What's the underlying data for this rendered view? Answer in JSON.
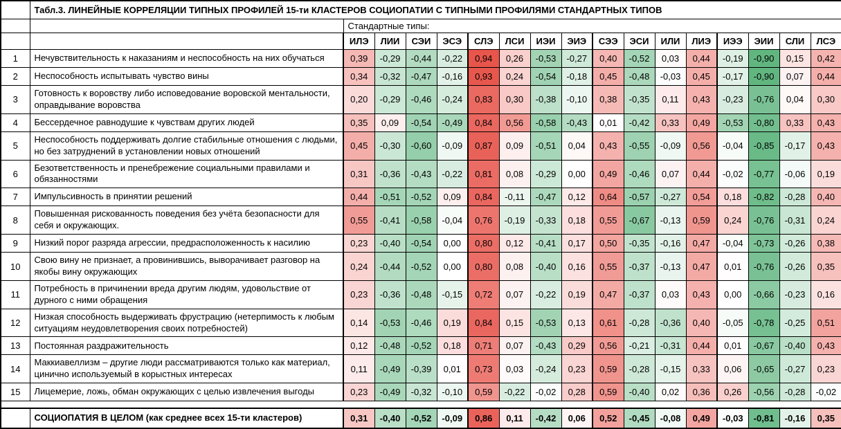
{
  "table": {
    "title": "Табл.3.   ЛИНЕЙНЫЕ КОРРЕЛЯЦИИ ТИПНЫХ ПРОФИЛЕЙ 15-ти КЛАСТЕРОВ СОЦИОПАТИИ С ТИПНЫМИ ПРОФИЛЯМИ СТАНДАРТНЫХ ТИПОВ",
    "subtitle": "Стандартные типы:"
  },
  "chart_data": {
    "type": "heatmap",
    "title": "Линейные корреляции типных профилей 15-ти кластеров социопатии с типными профилями стандартных типов",
    "value_range": [
      -1,
      1
    ],
    "palette": {
      "positive": "#e64a40",
      "negative": "#4fae72",
      "neutral": "#ffffff"
    },
    "columns": [
      "ИЛЭ",
      "ЛИИ",
      "СЭИ",
      "ЭСЭ",
      "СЛЭ",
      "ЛСИ",
      "ИЭИ",
      "ЭИЭ",
      "СЭЭ",
      "ЭСИ",
      "ИЛИ",
      "ЛИЭ",
      "ИЭЭ",
      "ЭИИ",
      "СЛИ",
      "ЛСЭ"
    ],
    "rows": [
      {
        "num": "1",
        "label": "Нечувствительность к наказаниям и неспособность на них обучаться",
        "values": [
          0.39,
          -0.29,
          -0.44,
          -0.22,
          0.94,
          0.26,
          -0.53,
          -0.27,
          0.4,
          -0.52,
          0.03,
          0.44,
          -0.19,
          -0.9,
          0.15,
          0.42
        ]
      },
      {
        "num": "2",
        "label": "Неспособность испытывать чувство вины",
        "values": [
          0.34,
          -0.32,
          -0.47,
          -0.16,
          0.93,
          0.24,
          -0.54,
          -0.18,
          0.45,
          -0.48,
          -0.03,
          0.45,
          -0.17,
          -0.9,
          0.07,
          0.44
        ]
      },
      {
        "num": "3",
        "label": "Готовность к воровству либо исповедование воровской ментальности, оправдывание воровства",
        "values": [
          0.2,
          -0.29,
          -0.46,
          -0.24,
          0.83,
          0.3,
          -0.38,
          -0.1,
          0.38,
          -0.35,
          0.11,
          0.43,
          -0.23,
          -0.76,
          0.04,
          0.3
        ]
      },
      {
        "num": "4",
        "label": "Бессердечное равнодушие к чувствам других людей",
        "values": [
          0.35,
          0.09,
          -0.54,
          -0.49,
          0.84,
          0.56,
          -0.58,
          -0.43,
          0.01,
          -0.42,
          0.33,
          0.49,
          -0.53,
          -0.8,
          0.33,
          0.43
        ]
      },
      {
        "num": "5",
        "label": "Неспособность поддерживать долгие стабильные отношения с людьми, но без затруднений в установлении новых отношений",
        "values": [
          0.45,
          -0.3,
          -0.6,
          -0.09,
          0.87,
          0.09,
          -0.51,
          0.04,
          0.43,
          -0.55,
          -0.09,
          0.56,
          -0.04,
          -0.85,
          -0.17,
          0.43
        ]
      },
      {
        "num": "6",
        "label": "Безответственность и пренебрежение социальными правилами и обязанностями",
        "values": [
          0.31,
          -0.36,
          -0.43,
          -0.22,
          0.81,
          0.08,
          -0.29,
          0.0,
          0.49,
          -0.46,
          0.07,
          0.44,
          -0.02,
          -0.77,
          -0.06,
          0.19
        ]
      },
      {
        "num": "7",
        "label": "Импульсивность в принятии решений",
        "values": [
          0.44,
          -0.51,
          -0.52,
          0.09,
          0.84,
          -0.11,
          -0.47,
          0.12,
          0.64,
          -0.57,
          -0.27,
          0.54,
          0.18,
          -0.82,
          -0.28,
          0.4
        ]
      },
      {
        "num": "8",
        "label": "Повышенная рискованность поведения без учёта безопасности для себя и окружающих.",
        "values": [
          0.55,
          -0.41,
          -0.58,
          -0.04,
          0.76,
          -0.19,
          -0.33,
          0.18,
          0.55,
          -0.67,
          -0.13,
          0.59,
          0.24,
          -0.76,
          -0.31,
          0.24
        ]
      },
      {
        "num": "9",
        "label": "Низкий порог разряда агрессии, предрасположенность к насилию",
        "values": [
          0.23,
          -0.4,
          -0.54,
          0.0,
          0.8,
          0.12,
          -0.41,
          0.17,
          0.5,
          -0.35,
          -0.16,
          0.47,
          -0.04,
          -0.73,
          -0.26,
          0.38
        ]
      },
      {
        "num": "10",
        "label": "Свою вину не признает, а провинившись, выворачивает разговор на якобы вину окружающих",
        "values": [
          0.24,
          -0.44,
          -0.52,
          0.0,
          0.8,
          0.08,
          -0.4,
          0.16,
          0.55,
          -0.37,
          -0.13,
          0.47,
          0.01,
          -0.76,
          -0.26,
          0.35
        ]
      },
      {
        "num": "11",
        "label": "Потребность в причинении вреда другим людям, удовольствие от дурного с ними обращения",
        "values": [
          0.23,
          -0.36,
          -0.48,
          -0.15,
          0.72,
          0.07,
          -0.22,
          0.19,
          0.47,
          -0.37,
          0.03,
          0.43,
          0.0,
          -0.66,
          -0.23,
          0.16
        ]
      },
      {
        "num": "12",
        "label": "Низкая способность выдерживать фрустрацию (нетерпимость к любым ситуациям неудовлетворения своих потребностей)",
        "values": [
          0.14,
          -0.53,
          -0.46,
          0.19,
          0.84,
          0.15,
          -0.53,
          0.13,
          0.61,
          -0.28,
          -0.36,
          0.4,
          -0.05,
          -0.78,
          -0.25,
          0.51
        ]
      },
      {
        "num": "13",
        "label": "Постоянная раздражительность",
        "values": [
          0.12,
          -0.48,
          -0.52,
          0.18,
          0.71,
          0.07,
          -0.43,
          0.29,
          0.56,
          -0.21,
          -0.31,
          0.44,
          0.01,
          -0.67,
          -0.4,
          0.43
        ]
      },
      {
        "num": "14",
        "label": "Маккиавеллизм – другие люди рассматриваются только как материал, цинично используемый в корыстных интересах",
        "values": [
          0.11,
          -0.49,
          -0.39,
          0.01,
          0.73,
          0.03,
          -0.24,
          0.23,
          0.59,
          -0.28,
          -0.15,
          0.33,
          0.06,
          -0.65,
          -0.27,
          0.23
        ]
      },
      {
        "num": "15",
        "label": "Лицемерие, ложь, обман окружающих с целью извлечения выгоды",
        "values": [
          0.23,
          -0.49,
          -0.32,
          -0.1,
          0.59,
          -0.22,
          -0.02,
          0.28,
          0.59,
          -0.4,
          0.02,
          0.36,
          0.26,
          -0.56,
          -0.28,
          -0.02
        ]
      }
    ],
    "total_row": {
      "num": "",
      "label": "СОЦИОПАТИЯ В ЦЕЛОМ (как среднее всех 15-ти кластеров)",
      "values": [
        0.31,
        -0.4,
        -0.52,
        -0.09,
        0.86,
        0.11,
        -0.42,
        0.06,
        0.52,
        -0.45,
        -0.08,
        0.49,
        -0.03,
        -0.81,
        -0.16,
        0.35
      ]
    }
  }
}
